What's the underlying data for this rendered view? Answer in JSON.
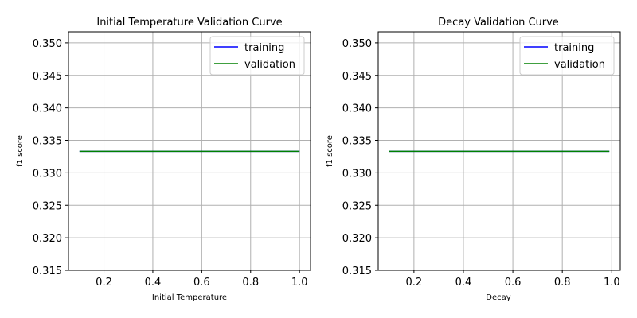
{
  "chart_data": [
    {
      "type": "line",
      "title": "Initial Temperature Validation Curve",
      "xlabel": "Initial Temperature",
      "ylabel": "f1 score",
      "xlim": [
        0.055,
        1.045
      ],
      "ylim": [
        0.315,
        0.3517
      ],
      "xticks": [
        0.2,
        0.4,
        0.6,
        0.8,
        1.0
      ],
      "xtick_labels": [
        "0.2",
        "0.4",
        "0.6",
        "0.8",
        "1.0"
      ],
      "yticks": [
        0.315,
        0.32,
        0.325,
        0.33,
        0.335,
        0.34,
        0.345,
        0.35
      ],
      "ytick_labels": [
        "0.315",
        "0.320",
        "0.325",
        "0.330",
        "0.335",
        "0.340",
        "0.345",
        "0.350"
      ],
      "grid": true,
      "legend_position": "upper right",
      "x": [
        0.1,
        0.2,
        0.3,
        0.4,
        0.5,
        0.6,
        0.7,
        0.8,
        0.9,
        1.0
      ],
      "series": [
        {
          "name": "training",
          "color": "#0000ff",
          "values": [
            0.3333,
            0.3333,
            0.3333,
            0.3333,
            0.3333,
            0.3333,
            0.3333,
            0.3333,
            0.3333,
            0.3333
          ]
        },
        {
          "name": "validation",
          "color": "#008000",
          "values": [
            0.3333,
            0.3333,
            0.3333,
            0.3333,
            0.3333,
            0.3333,
            0.3333,
            0.3333,
            0.3333,
            0.3333
          ]
        }
      ]
    },
    {
      "type": "line",
      "title": "Decay Validation Curve",
      "xlabel": "Decay",
      "ylabel": "f1 score",
      "xlim": [
        0.0555,
        1.0345
      ],
      "ylim": [
        0.315,
        0.3517
      ],
      "xticks": [
        0.2,
        0.4,
        0.6,
        0.8,
        1.0
      ],
      "xtick_labels": [
        "0.2",
        "0.4",
        "0.6",
        "0.8",
        "1.0"
      ],
      "yticks": [
        0.315,
        0.32,
        0.325,
        0.33,
        0.335,
        0.34,
        0.345,
        0.35
      ],
      "ytick_labels": [
        "0.315",
        "0.320",
        "0.325",
        "0.330",
        "0.335",
        "0.340",
        "0.345",
        "0.350"
      ],
      "grid": true,
      "legend_position": "upper right",
      "x": [
        0.1,
        0.2,
        0.3,
        0.4,
        0.5,
        0.6,
        0.7,
        0.8,
        0.9,
        0.99
      ],
      "series": [
        {
          "name": "training",
          "color": "#0000ff",
          "values": [
            0.3333,
            0.3333,
            0.3333,
            0.3333,
            0.3333,
            0.3333,
            0.3333,
            0.3333,
            0.3333,
            0.3333
          ]
        },
        {
          "name": "validation",
          "color": "#008000",
          "values": [
            0.3333,
            0.3333,
            0.3333,
            0.3333,
            0.3333,
            0.3333,
            0.3333,
            0.3333,
            0.3333,
            0.3333
          ]
        }
      ]
    }
  ]
}
